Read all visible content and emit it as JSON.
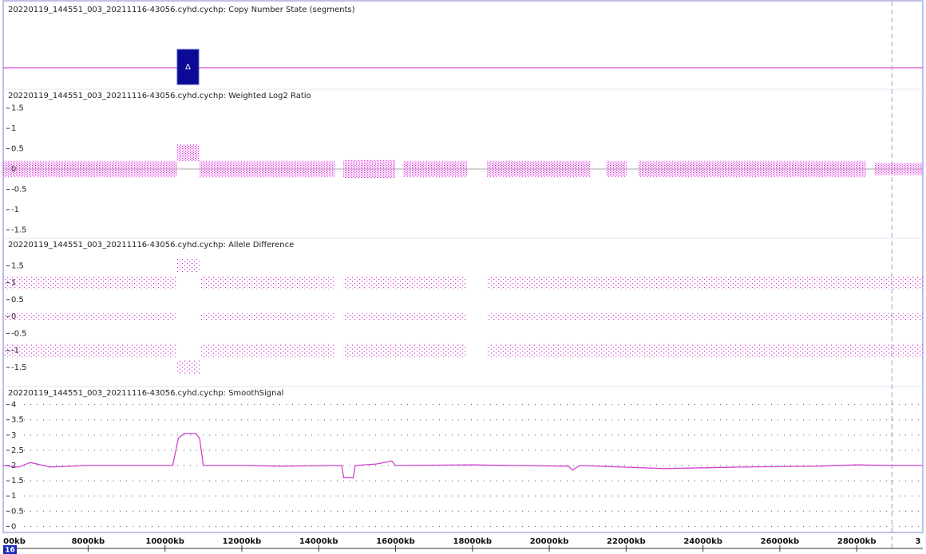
{
  "x_axis": {
    "xlim": [
      5790,
      29720
    ],
    "ticks": [
      {
        "value": 6000,
        "label": "00kb"
      },
      {
        "value": 8000,
        "label": "8000kb"
      },
      {
        "value": 10000,
        "label": "10000kb"
      },
      {
        "value": 12000,
        "label": "12000kb"
      },
      {
        "value": 14000,
        "label": "14000kb"
      },
      {
        "value": 16000,
        "label": "16000kb"
      },
      {
        "value": 18000,
        "label": "18000kb"
      },
      {
        "value": 20000,
        "label": "20000kb"
      },
      {
        "value": 22000,
        "label": "22000kb"
      },
      {
        "value": 24000,
        "label": "24000kb"
      },
      {
        "value": 26000,
        "label": "26000kb"
      },
      {
        "value": 28000,
        "label": "28000kb"
      },
      {
        "value": 30000,
        "label": "3"
      }
    ],
    "chromosome": "16",
    "cursor": 28914
  },
  "tracks": [
    {
      "type": "segments",
      "title": "20220119_144551_003_20211116-43056.cyhd.cychp: Copy Number State (segments)",
      "segments": [
        {
          "start": 10318,
          "end": 10879,
          "label": "Δ"
        }
      ],
      "color": "#0a0a96"
    },
    {
      "type": "band-scatter",
      "title": "20220119_144551_003_20211116-43056.cyhd.cychp: Weighted Log2 Ratio",
      "ylim": [
        -1.67,
        1.65
      ],
      "yticks": [
        1.5,
        1,
        0.5,
        0,
        -0.5,
        -1,
        -1.5
      ],
      "reference": 0,
      "color": "#e020e0",
      "bands": [
        {
          "start": 5790,
          "end": 10318,
          "center": 0,
          "spread": 0.2
        },
        {
          "start": 10318,
          "end": 10900,
          "center": 0.4,
          "spread": 0.2
        },
        {
          "start": 10900,
          "end": 14430,
          "center": 0,
          "spread": 0.2
        },
        {
          "start": 14640,
          "end": 15990,
          "center": 0,
          "spread": 0.22
        },
        {
          "start": 16200,
          "end": 17860,
          "center": 0,
          "spread": 0.2
        },
        {
          "start": 18380,
          "end": 21080,
          "center": 0,
          "spread": 0.2
        },
        {
          "start": 21490,
          "end": 22010,
          "center": 0,
          "spread": 0.2
        },
        {
          "start": 22320,
          "end": 28240,
          "center": 0,
          "spread": 0.2
        },
        {
          "start": 28450,
          "end": 29720,
          "center": 0,
          "spread": 0.15
        }
      ]
    },
    {
      "type": "band-scatter",
      "title": "20220119_144551_003_20211116-43056.cyhd.cychp: Allele Difference",
      "ylim": [
        -1.9,
        1.86
      ],
      "yticks": [
        1.5,
        1,
        0.5,
        0,
        -0.5,
        -1,
        -1.5
      ],
      "color": "#d030d0",
      "bands": [
        {
          "start": 5790,
          "end": 10318,
          "center": 1,
          "spread": 0.2
        },
        {
          "start": 5790,
          "end": 10318,
          "center": 0,
          "spread": 0.1
        },
        {
          "start": 5790,
          "end": 10318,
          "center": -1,
          "spread": 0.2
        },
        {
          "start": 10318,
          "end": 10900,
          "center": 1.5,
          "spread": 0.2
        },
        {
          "start": 10318,
          "end": 10900,
          "center": -1.5,
          "spread": 0.2
        },
        {
          "start": 10900,
          "end": 14430,
          "center": 1,
          "spread": 0.2
        },
        {
          "start": 10900,
          "end": 14430,
          "center": 0,
          "spread": 0.1
        },
        {
          "start": 10900,
          "end": 14430,
          "center": -1,
          "spread": 0.2
        },
        {
          "start": 14640,
          "end": 17860,
          "center": 1,
          "spread": 0.2
        },
        {
          "start": 14640,
          "end": 17860,
          "center": 0,
          "spread": 0.1
        },
        {
          "start": 14640,
          "end": 17860,
          "center": -1,
          "spread": 0.2
        },
        {
          "start": 18380,
          "end": 29720,
          "center": 1,
          "spread": 0.2
        },
        {
          "start": 18380,
          "end": 29720,
          "center": 0,
          "spread": 0.1
        },
        {
          "start": 18380,
          "end": 29720,
          "center": -1,
          "spread": 0.2
        }
      ]
    },
    {
      "type": "line",
      "title": "20220119_144551_003_20211116-43056.cyhd.cychp: SmoothSignal",
      "ylim": [
        -0.2,
        4.2
      ],
      "yticks": [
        4,
        3.5,
        3,
        2.5,
        2,
        1.5,
        1,
        0.5,
        0
      ],
      "grid": true,
      "color": "#d040d0",
      "x": [
        5790,
        6200,
        6500,
        7000,
        8000,
        9000,
        10200,
        10350,
        10500,
        10800,
        10900,
        11000,
        12000,
        13000,
        14600,
        14650,
        14900,
        14950,
        15500,
        15900,
        16000,
        18000,
        19000,
        20500,
        20600,
        20800,
        23000,
        25000,
        27000,
        28000,
        29000,
        29720
      ],
      "values": [
        2.0,
        1.95,
        2.1,
        1.95,
        2.0,
        2.0,
        2.0,
        2.9,
        3.05,
        3.05,
        2.9,
        2.0,
        2.0,
        1.98,
        2.0,
        1.6,
        1.6,
        2.0,
        2.05,
        2.15,
        2.0,
        2.02,
        2.0,
        1.98,
        1.85,
        2.0,
        1.9,
        1.95,
        1.98,
        2.02,
        2.0,
        2.0
      ]
    }
  ]
}
